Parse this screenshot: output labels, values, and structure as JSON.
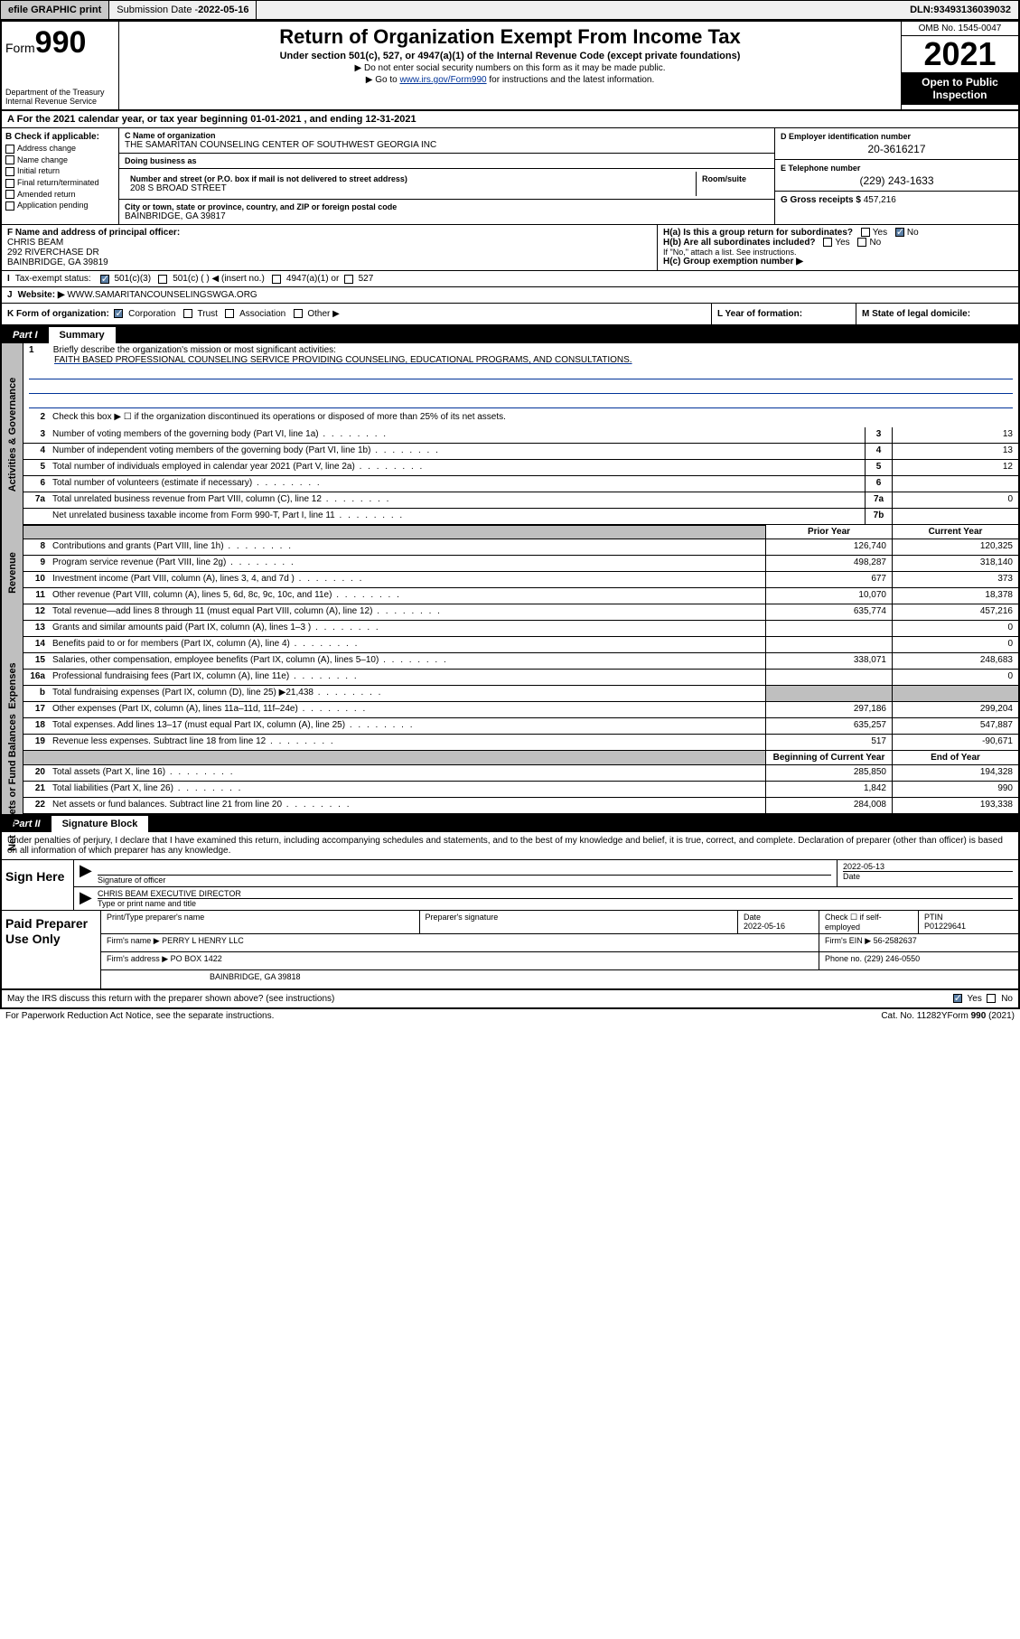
{
  "topbar": {
    "efile": "efile GRAPHIC print",
    "submission_label": "Submission Date - ",
    "submission_date": "2022-05-16",
    "dln_label": "DLN: ",
    "dln": "93493136039032"
  },
  "header": {
    "form_prefix": "Form",
    "form_num": "990",
    "dept": "Department of the Treasury\nInternal Revenue Service",
    "title": "Return of Organization Exempt From Income Tax",
    "sub": "Under section 501(c), 527, or 4947(a)(1) of the Internal Revenue Code (except private foundations)",
    "note1": "▶ Do not enter social security numbers on this form as it may be made public.",
    "note2_pre": "▶ Go to ",
    "note2_link": "www.irs.gov/Form990",
    "note2_post": " for instructions and the latest information.",
    "omb": "OMB No. 1545-0047",
    "year": "2021",
    "open": "Open to Public Inspection"
  },
  "a": {
    "text_pre": "For the 2021 calendar year, or tax year beginning ",
    "begin": "01-01-2021",
    "mid": " , and ending ",
    "end": "12-31-2021"
  },
  "b": {
    "hdr": "B Check if applicable:",
    "items": [
      "Address change",
      "Name change",
      "Initial return",
      "Final return/terminated",
      "Amended return",
      "Application pending"
    ]
  },
  "c": {
    "name_lbl": "C Name of organization",
    "name": "THE SAMARITAN COUNSELING CENTER OF SOUTHWEST GEORGIA INC",
    "dba_lbl": "Doing business as",
    "addr_lbl": "Number and street (or P.O. box if mail is not delivered to street address)",
    "room_lbl": "Room/suite",
    "addr": "208 S BROAD STREET",
    "city_lbl": "City or town, state or province, country, and ZIP or foreign postal code",
    "city": "BAINBRIDGE, GA  39817"
  },
  "d": {
    "lbl": "D Employer identification number",
    "val": "20-3616217"
  },
  "e": {
    "lbl": "E Telephone number",
    "val": "(229) 243-1633"
  },
  "g": {
    "lbl": "G Gross receipts $ ",
    "val": "457,216"
  },
  "f": {
    "lbl": "F  Name and address of principal officer:",
    "name": "CHRIS BEAM",
    "addr1": "292 RIVERCHASE DR",
    "addr2": "BAINBRIDGE, GA  39819"
  },
  "h": {
    "a": "H(a)  Is this a group return for subordinates?",
    "b": "H(b)  Are all subordinates included?",
    "b_note": "If \"No,\" attach a list. See instructions.",
    "c": "H(c)  Group exemption number ▶",
    "yes": "Yes",
    "no": "No"
  },
  "i": {
    "lbl": "Tax-exempt status:",
    "opts": [
      "501(c)(3)",
      "501(c) (  ) ◀ (insert no.)",
      "4947(a)(1) or",
      "527"
    ]
  },
  "j": {
    "lbl": "Website: ▶",
    "val": "WWW.SAMARITANCOUNSELINGSWGA.ORG"
  },
  "k": {
    "lbl": "K Form of organization:",
    "opts": [
      "Corporation",
      "Trust",
      "Association",
      "Other ▶"
    ]
  },
  "l": {
    "lbl": "L Year of formation:"
  },
  "m": {
    "lbl": "M State of legal domicile:"
  },
  "part1": {
    "num": "Part I",
    "title": "Summary"
  },
  "mission": {
    "num": "1",
    "lbl": "Briefly describe the organization's mission or most significant activities:",
    "text": "FAITH BASED PROFESSIONAL COUNSELING SERVICE PROVIDING COUNSELING, EDUCATIONAL PROGRAMS, AND CONSULTATIONS."
  },
  "gov_lines": [
    {
      "n": "2",
      "t": "Check this box ▶ ☐  if the organization discontinued its operations or disposed of more than 25% of its net assets."
    },
    {
      "n": "3",
      "t": "Number of voting members of the governing body (Part VI, line 1a)",
      "c": "3",
      "v": "13"
    },
    {
      "n": "4",
      "t": "Number of independent voting members of the governing body (Part VI, line 1b)",
      "c": "4",
      "v": "13"
    },
    {
      "n": "5",
      "t": "Total number of individuals employed in calendar year 2021 (Part V, line 2a)",
      "c": "5",
      "v": "12"
    },
    {
      "n": "6",
      "t": "Total number of volunteers (estimate if necessary)",
      "c": "6",
      "v": ""
    },
    {
      "n": "7a",
      "t": "Total unrelated business revenue from Part VIII, column (C), line 12",
      "c": "7a",
      "v": "0"
    },
    {
      "n": "",
      "t": "Net unrelated business taxable income from Form 990-T, Part I, line 11",
      "c": "7b",
      "v": ""
    }
  ],
  "col_hdrs": {
    "prior": "Prior Year",
    "current": "Current Year"
  },
  "rev_lines": [
    {
      "n": "8",
      "t": "Contributions and grants (Part VIII, line 1h)",
      "p": "126,740",
      "c": "120,325"
    },
    {
      "n": "9",
      "t": "Program service revenue (Part VIII, line 2g)",
      "p": "498,287",
      "c": "318,140"
    },
    {
      "n": "10",
      "t": "Investment income (Part VIII, column (A), lines 3, 4, and 7d )",
      "p": "677",
      "c": "373"
    },
    {
      "n": "11",
      "t": "Other revenue (Part VIII, column (A), lines 5, 6d, 8c, 9c, 10c, and 11e)",
      "p": "10,070",
      "c": "18,378"
    },
    {
      "n": "12",
      "t": "Total revenue—add lines 8 through 11 (must equal Part VIII, column (A), line 12)",
      "p": "635,774",
      "c": "457,216"
    }
  ],
  "exp_lines": [
    {
      "n": "13",
      "t": "Grants and similar amounts paid (Part IX, column (A), lines 1–3 )",
      "p": "",
      "c": "0"
    },
    {
      "n": "14",
      "t": "Benefits paid to or for members (Part IX, column (A), line 4)",
      "p": "",
      "c": "0"
    },
    {
      "n": "15",
      "t": "Salaries, other compensation, employee benefits (Part IX, column (A), lines 5–10)",
      "p": "338,071",
      "c": "248,683"
    },
    {
      "n": "16a",
      "t": "Professional fundraising fees (Part IX, column (A), line 11e)",
      "p": "",
      "c": "0"
    },
    {
      "n": "b",
      "t": "Total fundraising expenses (Part IX, column (D), line 25) ▶21,438",
      "p": "shade",
      "c": "shade"
    },
    {
      "n": "17",
      "t": "Other expenses (Part IX, column (A), lines 11a–11d, 11f–24e)",
      "p": "297,186",
      "c": "299,204"
    },
    {
      "n": "18",
      "t": "Total expenses. Add lines 13–17 (must equal Part IX, column (A), line 25)",
      "p": "635,257",
      "c": "547,887"
    },
    {
      "n": "19",
      "t": "Revenue less expenses. Subtract line 18 from line 12",
      "p": "517",
      "c": "-90,671"
    }
  ],
  "na_hdrs": {
    "begin": "Beginning of Current Year",
    "end": "End of Year"
  },
  "na_lines": [
    {
      "n": "20",
      "t": "Total assets (Part X, line 16)",
      "p": "285,850",
      "c": "194,328"
    },
    {
      "n": "21",
      "t": "Total liabilities (Part X, line 26)",
      "p": "1,842",
      "c": "990"
    },
    {
      "n": "22",
      "t": "Net assets or fund balances. Subtract line 21 from line 20",
      "p": "284,008",
      "c": "193,338"
    }
  ],
  "part2": {
    "num": "Part II",
    "title": "Signature Block"
  },
  "sig": {
    "intro": "Under penalties of perjury, I declare that I have examined this return, including accompanying schedules and statements, and to the best of my knowledge and belief, it is true, correct, and complete. Declaration of preparer (other than officer) is based on all information of which preparer has any knowledge.",
    "here": "Sign Here",
    "sig_lbl": "Signature of officer",
    "date_lbl": "Date",
    "date": "2022-05-13",
    "name": "CHRIS BEAM  EXECUTIVE DIRECTOR",
    "name_lbl": "Type or print name and title"
  },
  "prep": {
    "hdr": "Paid Preparer Use Only",
    "r1": {
      "c1": "Print/Type preparer's name",
      "c2": "Preparer's signature",
      "c3": "Date",
      "c3v": "2022-05-16",
      "c4": "Check ☐ if self-employed",
      "c5": "PTIN",
      "c5v": "P01229641"
    },
    "r2": {
      "lbl": "Firm's name    ▶",
      "val": "PERRY L HENRY LLC",
      "ein_lbl": "Firm's EIN ▶",
      "ein": "56-2582637"
    },
    "r3": {
      "lbl": "Firm's address ▶",
      "val": "PO BOX 1422",
      "ph_lbl": "Phone no.",
      "ph": "(229) 246-0550"
    },
    "r4": {
      "city": "BAINBRIDGE, GA  39818"
    }
  },
  "discuss": {
    "q": "May the IRS discuss this return with the preparer shown above? (see instructions)",
    "yes": "Yes",
    "no": "No"
  },
  "footer": {
    "l": "For Paperwork Reduction Act Notice, see the separate instructions.",
    "m": "Cat. No. 11282Y",
    "r": "Form 990 (2021)"
  },
  "side": {
    "gov": "Activities & Governance",
    "rev": "Revenue",
    "exp": "Expenses",
    "na": "Net Assets or Fund Balances"
  }
}
